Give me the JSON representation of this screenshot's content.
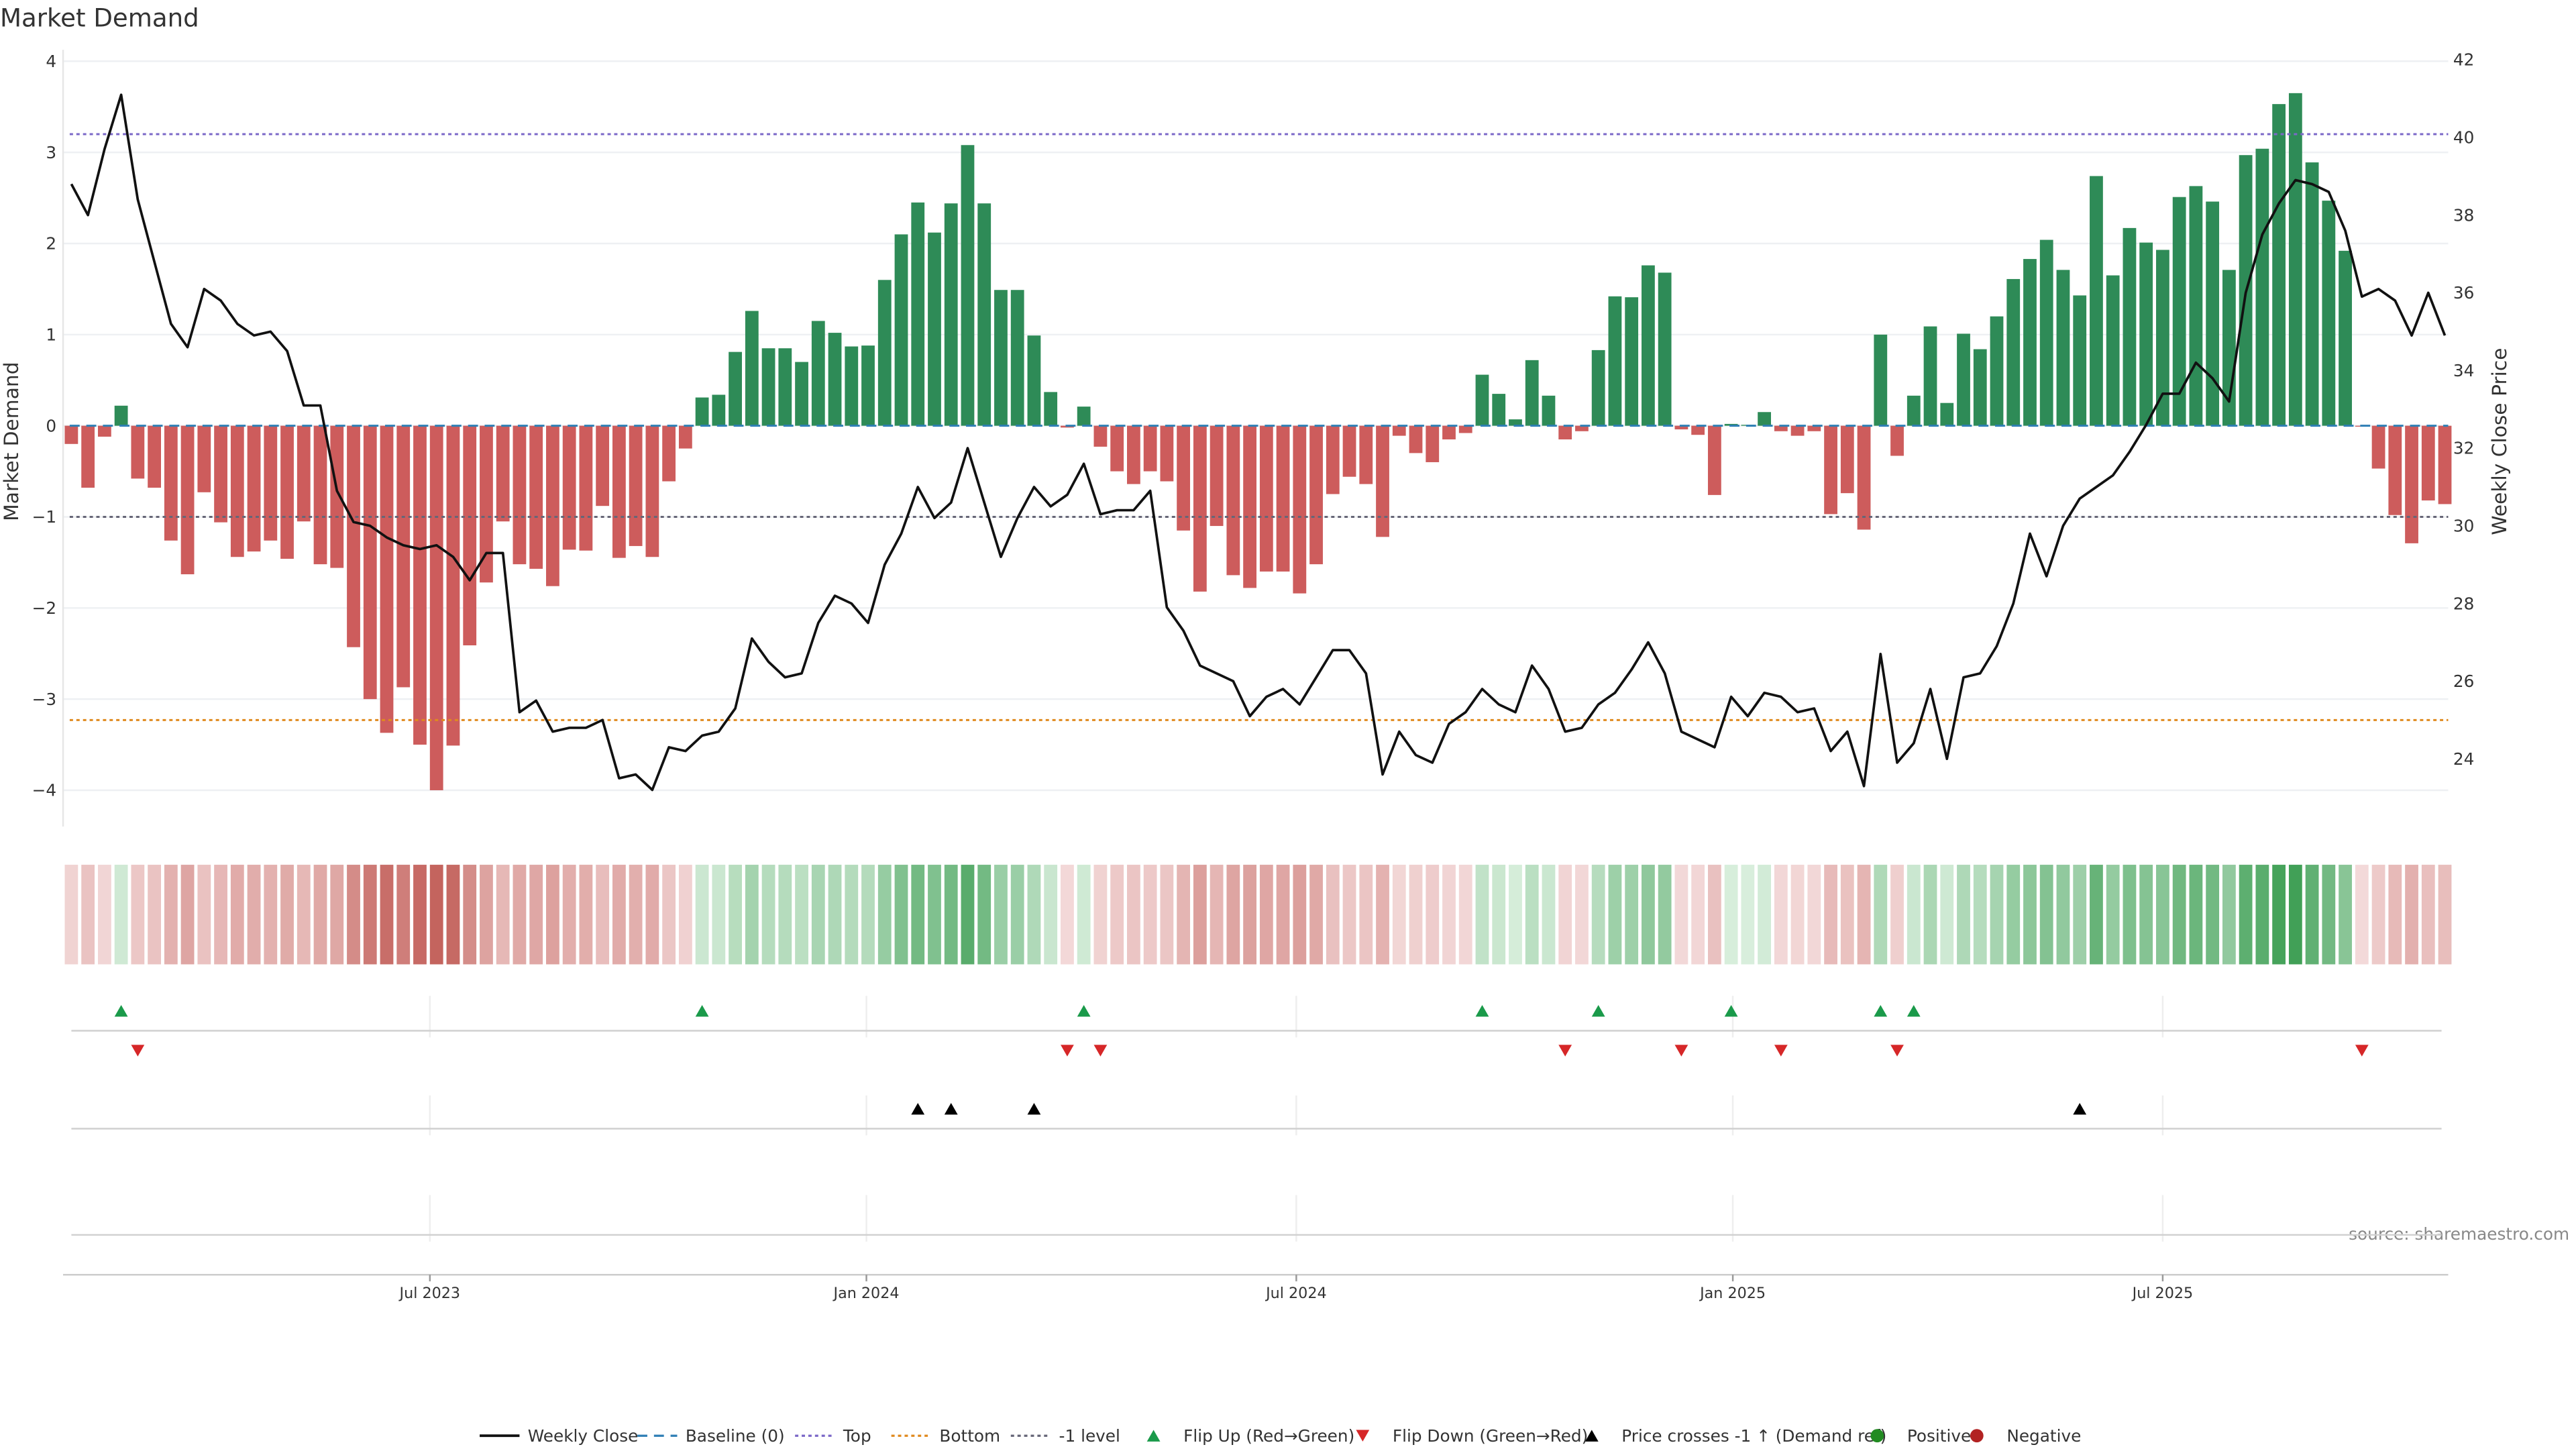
{
  "chart_data": {
    "type": "bar",
    "title": "Market Demand",
    "ylabel": "Market Demand",
    "y2label": "Weekly Close Price",
    "ylim": [
      -4.4,
      4.1
    ],
    "y2lim": [
      22.5,
      42.3
    ],
    "yticks": [
      4,
      3,
      2,
      1,
      0,
      -1,
      -2,
      -3,
      -4
    ],
    "yticklabels": [
      "4",
      "3",
      "2",
      "1",
      "0",
      "−1",
      "−2",
      "−3",
      "−4"
    ],
    "y2ticks": [
      42,
      40,
      38,
      36,
      34,
      32,
      30,
      28,
      26,
      24
    ],
    "xticks": [
      {
        "week": 21.6,
        "label": "Jul 2023"
      },
      {
        "week": 47.9,
        "label": "Jan 2024"
      },
      {
        "week": 73.8,
        "label": "Jul 2024"
      },
      {
        "week": 100.1,
        "label": "Jan 2025"
      },
      {
        "week": 126,
        "label": "Jul 2025"
      }
    ],
    "levels": {
      "top": 3.2,
      "bottom": -3.23,
      "minus_one": -1,
      "baseline": 0
    },
    "demand": [
      -0.2,
      -0.68,
      -0.12,
      0.22,
      -0.58,
      -0.68,
      -1.26,
      -1.63,
      -0.73,
      -1.06,
      -1.44,
      -1.38,
      -1.26,
      -1.46,
      -1.05,
      -1.52,
      -1.56,
      -2.43,
      -3.0,
      -3.37,
      -2.87,
      -3.5,
      -4.0,
      -3.51,
      -2.41,
      -1.72,
      -1.05,
      -1.52,
      -1.57,
      -1.76,
      -1.36,
      -1.37,
      -0.88,
      -1.45,
      -1.32,
      -1.44,
      -0.61,
      -0.25,
      0.31,
      0.34,
      0.81,
      1.26,
      0.85,
      0.85,
      0.7,
      1.15,
      1.02,
      0.87,
      0.88,
      1.6,
      2.1,
      2.45,
      2.12,
      2.44,
      3.08,
      2.44,
      1.49,
      1.49,
      0.99,
      0.37,
      -0.02,
      0.21,
      -0.23,
      -0.5,
      -0.64,
      -0.5,
      -0.61,
      -1.15,
      -1.82,
      -1.1,
      -1.64,
      -1.78,
      -1.6,
      -1.6,
      -1.84,
      -1.52,
      -0.75,
      -0.56,
      -0.64,
      -1.22,
      -0.11,
      -0.3,
      -0.4,
      -0.15,
      -0.08,
      0.56,
      0.35,
      0.07,
      0.72,
      0.33,
      -0.15,
      -0.06,
      0.83,
      1.42,
      1.41,
      1.76,
      1.68,
      -0.04,
      -0.1,
      -0.76,
      0.02,
      0.01,
      0.15,
      -0.06,
      -0.11,
      -0.06,
      -0.97,
      -0.74,
      -1.14,
      1.0,
      -0.33,
      0.33,
      1.09,
      0.25,
      1.01,
      0.84,
      1.2,
      1.61,
      1.83,
      2.04,
      1.71,
      1.43,
      2.74,
      1.65,
      2.17,
      2.01,
      1.93,
      2.51,
      2.63,
      2.46,
      1.71,
      2.97,
      3.04,
      3.53,
      3.65,
      2.89,
      2.47,
      1.92,
      -0.01,
      -0.47,
      -0.98,
      -1.29,
      -0.82,
      -0.86
    ],
    "price": [
      38.8,
      38.0,
      39.7,
      41.1,
      38.4,
      36.8,
      35.2,
      34.6,
      36.1,
      35.8,
      35.2,
      34.9,
      35.0,
      34.5,
      33.1,
      33.1,
      30.9,
      30.1,
      30.0,
      29.7,
      29.5,
      29.4,
      29.5,
      29.2,
      28.6,
      29.3,
      29.3,
      25.2,
      25.5,
      24.7,
      24.8,
      24.8,
      25.0,
      23.5,
      23.6,
      23.2,
      24.3,
      24.2,
      24.6,
      24.7,
      25.3,
      27.1,
      26.5,
      26.1,
      26.2,
      27.5,
      28.2,
      28.0,
      27.5,
      29.0,
      29.8,
      31.0,
      30.2,
      30.6,
      32.0,
      30.6,
      29.2,
      30.2,
      31.0,
      30.5,
      30.8,
      31.6,
      30.3,
      30.4,
      30.4,
      30.9,
      27.9,
      27.3,
      26.4,
      26.2,
      26.0,
      25.1,
      25.6,
      25.8,
      25.4,
      26.1,
      26.8,
      26.8,
      26.2,
      23.6,
      24.7,
      24.1,
      23.9,
      24.9,
      25.2,
      25.8,
      25.4,
      25.2,
      26.4,
      25.8,
      24.7,
      24.8,
      25.4,
      25.7,
      26.3,
      27.0,
      26.2,
      24.7,
      24.5,
      24.3,
      25.6,
      25.1,
      25.7,
      25.6,
      25.2,
      25.3,
      24.2,
      24.7,
      23.3,
      26.7,
      23.9,
      24.4,
      25.8,
      24.0,
      26.1,
      26.2,
      26.9,
      28.0,
      29.8,
      28.7,
      30.0,
      30.7,
      31.0,
      31.3,
      31.9,
      32.6,
      33.4,
      33.4,
      34.2,
      33.8,
      33.2,
      36.0,
      37.5,
      38.3,
      38.9,
      38.8,
      38.6,
      37.6,
      35.9,
      36.1,
      35.8,
      34.9,
      36.0,
      34.9
    ],
    "flip_up_weeks": [
      3,
      38,
      61,
      85,
      92,
      100,
      109,
      111
    ],
    "flip_down_weeks": [
      4,
      60,
      62,
      90,
      97,
      103,
      110,
      138
    ],
    "price_cross_weeks": [
      51,
      53,
      58,
      121
    ],
    "colors": {
      "positive": "#2e8b57",
      "negative": "#cd5c5c",
      "price": "#111111",
      "baseline": "#2f7fb5",
      "top": "#7b68c8",
      "bottom": "#e08a1e",
      "minus_one": "#666677",
      "flip_up": "#1a9a4a",
      "flip_down": "#d62728",
      "cross": "#000000",
      "pos_dot": "#228b22",
      "neg_dot": "#b22222"
    },
    "legend": [
      "Weekly Close",
      "Baseline (0)",
      "Top",
      "Bottom",
      "-1 level",
      "Flip Up (Red→Green)",
      "Flip Down (Green→Red)",
      "Price crosses -1 ↑ (Demand ref)",
      "Positive",
      "Negative"
    ],
    "source": "source: sharemaestro.com"
  }
}
